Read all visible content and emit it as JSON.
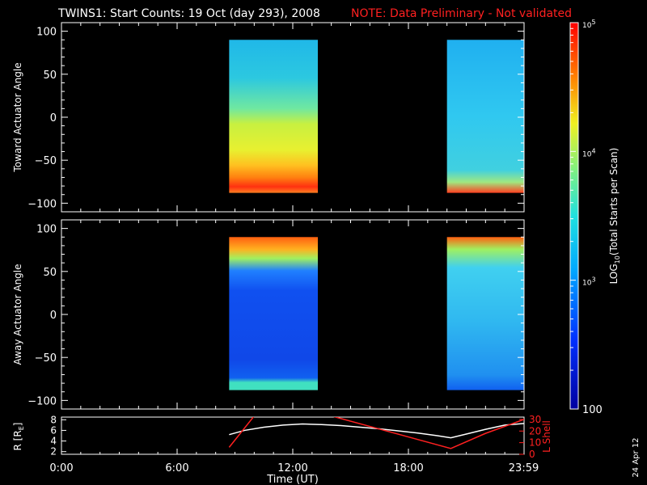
{
  "header": {
    "title": "TWINS1: Start Counts: 19 Oct (day 293), 2008",
    "note": "NOTE: Data Preliminary - Not validated"
  },
  "stamp": "24 Apr 12",
  "colors": {
    "background": "#000000",
    "axis": "#ffffff",
    "note": "#ff2020",
    "lshell": "#ff2020",
    "radius": "#ffffff"
  },
  "chart_data": [
    {
      "type": "heatmap",
      "name": "toward",
      "ylabel": "Toward Actuator Angle",
      "ylim": [
        -110,
        110
      ],
      "yticks": [
        100,
        50,
        0,
        -50,
        -100
      ],
      "xlim": [
        0,
        24
      ],
      "y_extent": [
        -88,
        90
      ],
      "data_gaps": [
        [
          0,
          8.7
        ],
        [
          13.3,
          20.0
        ]
      ],
      "segments": [
        {
          "start": 8.7,
          "end": 13.3
        },
        {
          "start": 20.0,
          "end": 23.98
        }
      ]
    },
    {
      "type": "heatmap",
      "name": "away",
      "ylabel": "Away Actuator Angle",
      "ylim": [
        -110,
        110
      ],
      "yticks": [
        100,
        50,
        0,
        -50,
        -100
      ],
      "xlim": [
        0,
        24
      ],
      "y_extent": [
        -88,
        90
      ],
      "segments": [
        {
          "start": 8.7,
          "end": 13.3
        },
        {
          "start": 20.0,
          "end": 23.98
        }
      ]
    },
    {
      "type": "line",
      "name": "orbit",
      "ylabel": "R [R",
      "ylabel_sub": "E",
      "ylabel_end": "]",
      "ylim": [
        1.5,
        8.5
      ],
      "yticks": [
        2,
        4,
        6,
        8
      ],
      "y2label": "L Shell",
      "y2lim": [
        0,
        32
      ],
      "y2ticks": [
        0,
        10,
        20,
        30
      ],
      "xlabel": "Time (UT)",
      "xticks": [
        {
          "value": 0,
          "label": "0:00"
        },
        {
          "value": 6,
          "label": "6:00"
        },
        {
          "value": 12,
          "label": "12:00"
        },
        {
          "value": 18,
          "label": "18:00"
        },
        {
          "value": 23.98,
          "label": "23:59"
        }
      ],
      "series": [
        {
          "axis": "left",
          "x": [
            8.7,
            9.5,
            10.5,
            11.5,
            12.5,
            13.5,
            14.5,
            15.5,
            16.5,
            17.5,
            18.5,
            19.5,
            20.2,
            21,
            22,
            23,
            24
          ],
          "y": [
            5.2,
            6.0,
            6.6,
            7.0,
            7.2,
            7.1,
            6.9,
            6.6,
            6.3,
            5.9,
            5.5,
            5.0,
            4.6,
            5.3,
            6.2,
            7.0,
            7.3
          ]
        },
        {
          "axis": "right",
          "x": [
            8.7,
            10.0,
            14.0,
            20.2,
            22,
            24
          ],
          "y": [
            6,
            33,
            33,
            5,
            18,
            30
          ]
        }
      ]
    }
  ],
  "colorbar": {
    "label": "LOG",
    "label_sub": "10",
    "label_end": "(Total Starts per Scan)",
    "ticks": [
      {
        "value": 100000,
        "label": "10",
        "sup": "5"
      },
      {
        "value": 10000,
        "label": "10",
        "sup": "4"
      },
      {
        "value": 1000,
        "label": "10",
        "sup": "3"
      },
      {
        "value": 100,
        "label": "100",
        "sup": ""
      }
    ],
    "range": [
      100,
      100000
    ]
  }
}
